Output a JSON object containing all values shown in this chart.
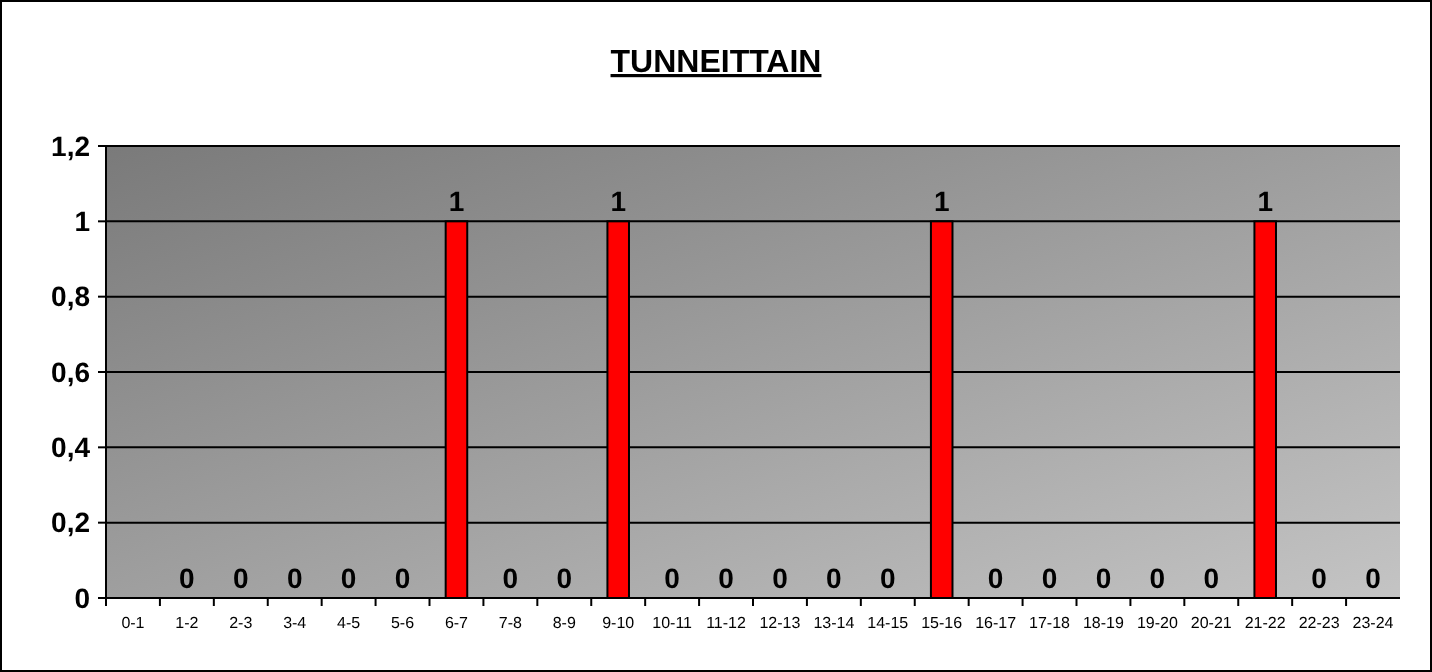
{
  "chart_data": {
    "type": "bar",
    "title": "TUNNEITTAIN",
    "categories": [
      "0-1",
      "1-2",
      "2-3",
      "3-4",
      "4-5",
      "5-6",
      "6-7",
      "7-8",
      "8-9",
      "9-10",
      "10-11",
      "11-12",
      "12-13",
      "13-14",
      "14-15",
      "15-16",
      "16-17",
      "17-18",
      "18-19",
      "19-20",
      "20-21",
      "21-22",
      "22-23",
      "23-24"
    ],
    "values": [
      0,
      0,
      0,
      0,
      0,
      0,
      1,
      0,
      0,
      1,
      0,
      0,
      0,
      0,
      0,
      1,
      0,
      0,
      0,
      0,
      0,
      1,
      0,
      0
    ],
    "value_labels": [
      null,
      "0",
      "0",
      "0",
      "0",
      "0",
      "1",
      "0",
      "0",
      "1",
      "0",
      "0",
      "0",
      "0",
      "0",
      "1",
      "0",
      "0",
      "0",
      "0",
      "0",
      "1",
      "0",
      "0"
    ],
    "color": "#ff0000",
    "ylim": [
      0,
      1.2
    ],
    "yticks": [
      0,
      {
        "value": 0.2,
        "label": "0,2"
      },
      {
        "value": 0.4,
        "label": "0,4"
      },
      {
        "value": 0.6,
        "label": "0,6"
      },
      {
        "value": 0.8,
        "label": "0,8"
      },
      1,
      {
        "value": 1.2,
        "label": "1,2"
      }
    ],
    "grid": "y"
  }
}
